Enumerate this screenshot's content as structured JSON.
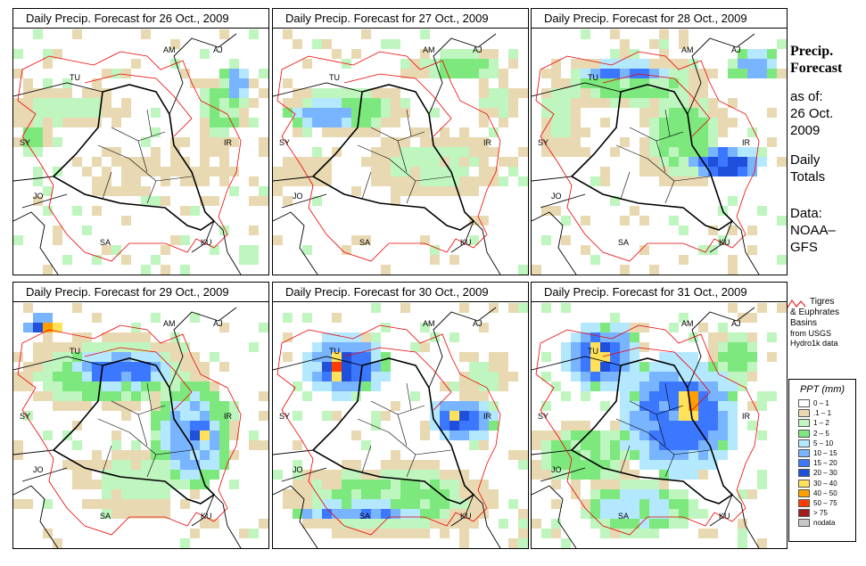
{
  "panels": [
    {
      "title": "Daily Precip. Forecast for  26 Oct., 2009",
      "pattern": "p1"
    },
    {
      "title": "Daily Precip. Forecast for  27 Oct., 2009",
      "pattern": "p2"
    },
    {
      "title": "Daily Precip. Forecast for  28 Oct., 2009",
      "pattern": "p3"
    },
    {
      "title": "Daily Precip. Forecast for  29 Oct., 2009",
      "pattern": "p4"
    },
    {
      "title": "Daily Precip. Forecast for  30 Oct., 2009",
      "pattern": "p5"
    },
    {
      "title": "Daily Precip. Forecast for  31 Oct., 2009",
      "pattern": "p6"
    }
  ],
  "country_labels": [
    "AM",
    "AJ",
    "TU",
    "SY",
    "IR",
    "JO",
    "SA",
    "KU"
  ],
  "sidebar": {
    "heading_1": "Precip.",
    "heading_2": "Forecast",
    "as_of_1": "as of:",
    "as_of_2": "26 Oct.",
    "as_of_3": "2009",
    "daily_1": "Daily",
    "daily_2": "Totals",
    "data_1": "Data:",
    "data_2": "NOAA–",
    "data_3": "GFS"
  },
  "basin_note": {
    "line1": "Tigres",
    "line2": "& Euphrates",
    "line3": "Basins",
    "line4": "from USGS",
    "line5": "Hydro1k data"
  },
  "legend": {
    "title": "PPT (mm)",
    "items": [
      {
        "label": "0 – 1",
        "color": "#ffffff"
      },
      {
        "label": ".1 – 1",
        "color": "#e9d9b2"
      },
      {
        "label": "1 – 2",
        "color": "#bff5bf"
      },
      {
        "label": "2 – 5",
        "color": "#7de87d"
      },
      {
        "label": "5 – 10",
        "color": "#b4e8ff"
      },
      {
        "label": "10 – 15",
        "color": "#78b4ff"
      },
      {
        "label": "15 – 20",
        "color": "#3c78ff"
      },
      {
        "label": "20 – 30",
        "color": "#1e50dc"
      },
      {
        "label": "30 – 40",
        "color": "#ffe15a"
      },
      {
        "label": "40 – 50",
        "color": "#ffa000"
      },
      {
        "label": "50 – 75",
        "color": "#ff3c00"
      },
      {
        "label": "> 75",
        "color": "#a01e1e"
      },
      {
        "label": "nodata",
        "color": "#c8c8c8"
      }
    ]
  }
}
